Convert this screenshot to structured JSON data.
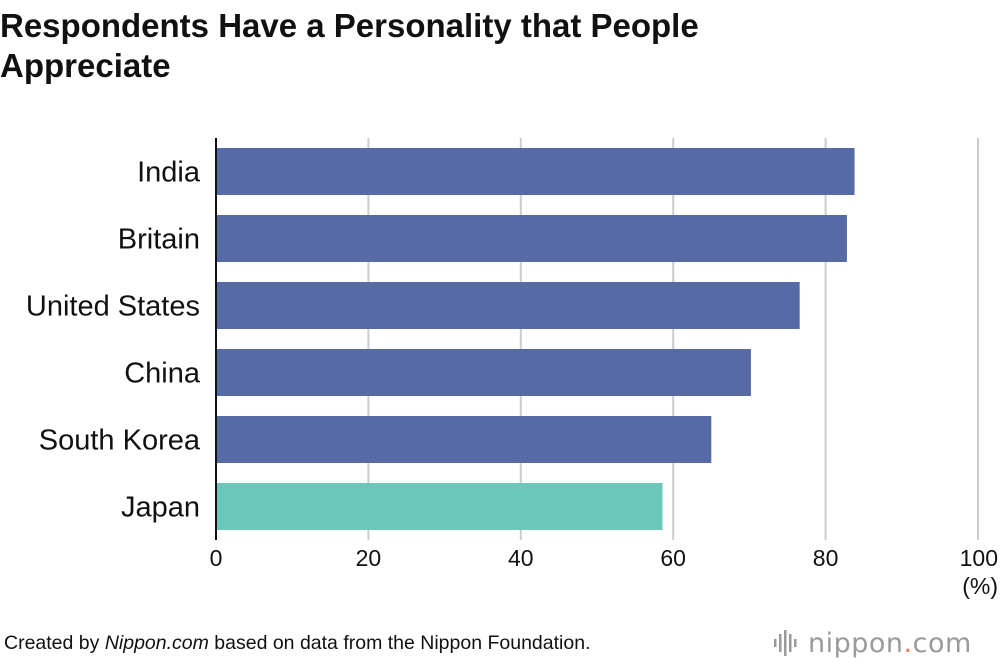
{
  "chart_data": {
    "type": "bar",
    "orientation": "horizontal",
    "title": "Respondents Have a Personality that People Appreciate",
    "categories": [
      "India",
      "Britain",
      "United States",
      "China",
      "South Korea",
      "Japan"
    ],
    "values": [
      83.8,
      82.8,
      76.6,
      70.2,
      65.0,
      58.6
    ],
    "highlight_category": "Japan",
    "xlim": [
      0,
      100
    ],
    "xticks": [
      0,
      20,
      40,
      60,
      80,
      100
    ],
    "xunit": "(%)",
    "grid": true,
    "colors": {
      "bar": "#566ba6",
      "highlight": "#6cc7bb",
      "grid": "#cccccc",
      "axis": "#111111"
    }
  },
  "footer": {
    "prefix": "Created by ",
    "source_name": "Nippon.com",
    "suffix": " based on data from the Nippon Foundation."
  },
  "brand": {
    "name": "nippon",
    "dot": ".",
    "tld": "com",
    "icon": "nippon-logo-icon"
  }
}
